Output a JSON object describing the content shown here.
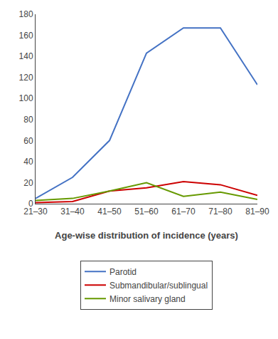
{
  "chart_data": {
    "type": "line",
    "xlabel": "Age-wise distribution of incidence (years)",
    "categories": [
      "21–30",
      "31–40",
      "41–50",
      "51–60",
      "61–70",
      "71–80",
      "81–90"
    ],
    "series": [
      {
        "name": "Parotid",
        "color": "#4472C4",
        "values": [
          5,
          25,
          60,
          143,
          167,
          167,
          113
        ]
      },
      {
        "name": "Submandibular/sublingual",
        "color": "#CC0000",
        "values": [
          1,
          2,
          12,
          15,
          21,
          18,
          8
        ]
      },
      {
        "name": "Minor salivary gland",
        "color": "#669900",
        "values": [
          3,
          5,
          12,
          20,
          7,
          11,
          4
        ]
      }
    ],
    "ylim": [
      0,
      180
    ],
    "yticks": [
      0,
      20,
      40,
      60,
      80,
      100,
      120,
      140,
      160,
      180
    ],
    "grid": false,
    "legend": "bottom"
  }
}
